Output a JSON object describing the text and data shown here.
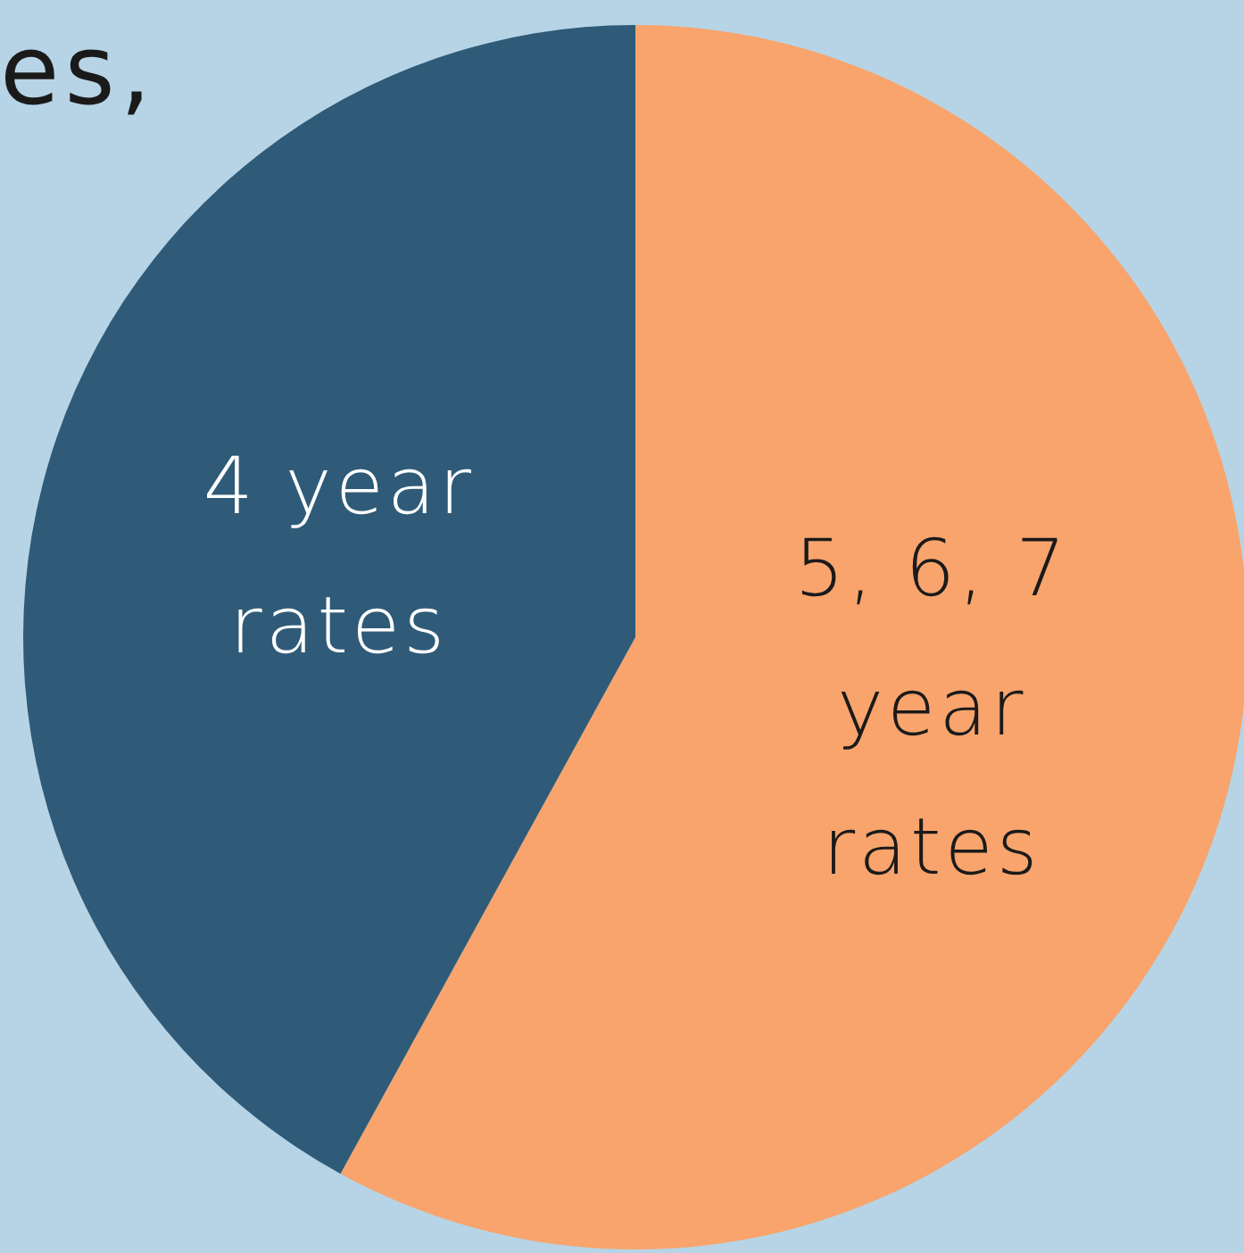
{
  "chart_data": {
    "type": "pie",
    "title": "es,",
    "categories": [
      "5, 6, 7 year rates",
      "4 year rates"
    ],
    "values": [
      58,
      42
    ],
    "colors": [
      "#f8a46c",
      "#2f5b78"
    ]
  }
}
